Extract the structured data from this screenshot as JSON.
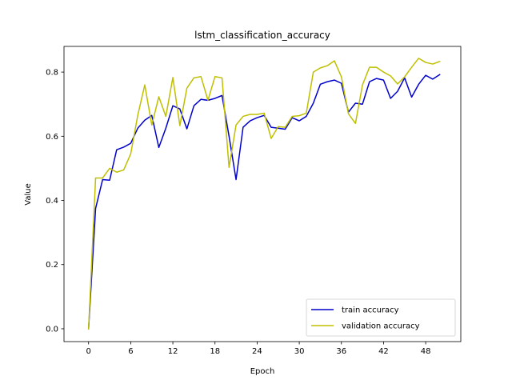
{
  "chart_data": {
    "type": "line",
    "title": "lstm_classification_accuracy",
    "xlabel": "Epoch",
    "ylabel": "Value",
    "xlim": [
      -3.5,
      53
    ],
    "ylim": [
      -0.04,
      0.88
    ],
    "xticks": [
      0,
      6,
      12,
      18,
      24,
      30,
      36,
      42,
      48
    ],
    "yticks": [
      0.0,
      0.2,
      0.4,
      0.6,
      0.8
    ],
    "ytick_labels": [
      "0.0",
      "0.2",
      "0.4",
      "0.6",
      "0.8"
    ],
    "grid": false,
    "legend_position": "lower-right",
    "series": [
      {
        "name": "train accuracy",
        "color": "#0000cc",
        "x": [
          0,
          1,
          2,
          3,
          4,
          5,
          6,
          7,
          8,
          9,
          10,
          11,
          12,
          13,
          14,
          15,
          16,
          17,
          18,
          19,
          20,
          21,
          22,
          23,
          24,
          25,
          26,
          27,
          28,
          29,
          30,
          31,
          32,
          33,
          34,
          35,
          36,
          37,
          38,
          39,
          40,
          41,
          42,
          43,
          44,
          45,
          46,
          47,
          48,
          49,
          50
        ],
        "values": [
          0.0,
          0.375,
          0.465,
          0.463,
          0.558,
          0.566,
          0.578,
          0.625,
          0.65,
          0.665,
          0.565,
          0.625,
          0.695,
          0.685,
          0.623,
          0.695,
          0.715,
          0.712,
          0.718,
          0.727,
          0.6,
          0.465,
          0.628,
          0.648,
          0.658,
          0.665,
          0.628,
          0.625,
          0.622,
          0.658,
          0.648,
          0.662,
          0.703,
          0.762,
          0.77,
          0.775,
          0.765,
          0.675,
          0.703,
          0.7,
          0.77,
          0.78,
          0.775,
          0.718,
          0.74,
          0.782,
          0.722,
          0.762,
          0.79,
          0.778,
          0.792
        ]
      },
      {
        "name": "validation accuracy",
        "color": "#bfbf00",
        "x": [
          0,
          1,
          2,
          3,
          4,
          5,
          6,
          7,
          8,
          9,
          10,
          11,
          12,
          13,
          14,
          15,
          16,
          17,
          18,
          19,
          20,
          21,
          22,
          23,
          24,
          25,
          26,
          27,
          28,
          29,
          30,
          31,
          32,
          33,
          34,
          35,
          36,
          37,
          38,
          39,
          40,
          41,
          42,
          43,
          44,
          45,
          46,
          47,
          48,
          49,
          50
        ],
        "values": [
          0.0,
          0.47,
          0.47,
          0.5,
          0.488,
          0.495,
          0.545,
          0.665,
          0.76,
          0.635,
          0.723,
          0.662,
          0.783,
          0.633,
          0.75,
          0.782,
          0.786,
          0.712,
          0.786,
          0.782,
          0.503,
          0.635,
          0.662,
          0.668,
          0.668,
          0.672,
          0.593,
          0.63,
          0.628,
          0.662,
          0.664,
          0.672,
          0.8,
          0.813,
          0.82,
          0.835,
          0.785,
          0.67,
          0.64,
          0.76,
          0.815,
          0.815,
          0.8,
          0.788,
          0.763,
          0.785,
          0.815,
          0.843,
          0.83,
          0.825,
          0.833
        ]
      }
    ]
  }
}
